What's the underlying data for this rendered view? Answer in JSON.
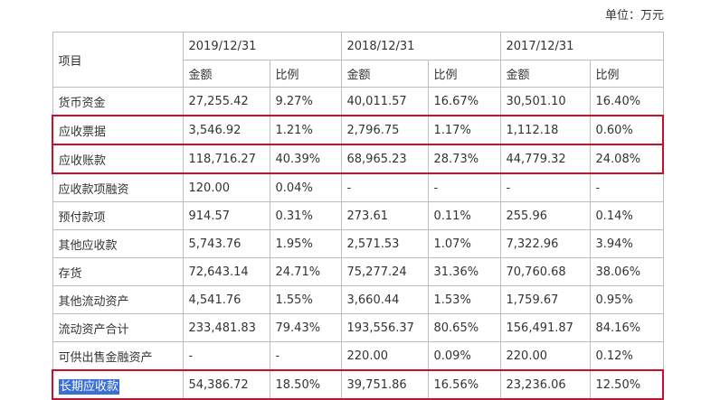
{
  "unit_label": "单位：万元",
  "header": {
    "item": "项目",
    "years": [
      "2019/12/31",
      "2018/12/31",
      "2017/12/31"
    ],
    "amount": "金额",
    "ratio": "比例"
  },
  "rows": [
    {
      "name": "货币资金",
      "v": [
        "27,255.42",
        "9.27%",
        "40,011.57",
        "16.67%",
        "30,501.10",
        "16.40%"
      ]
    },
    {
      "name": "应收票据",
      "v": [
        "3,546.92",
        "1.21%",
        "2,796.75",
        "1.17%",
        "1,112.18",
        "0.60%"
      ]
    },
    {
      "name": "应收账款",
      "v": [
        "118,716.27",
        "40.39%",
        "68,965.23",
        "28.73%",
        "44,779.32",
        "24.08%"
      ]
    },
    {
      "name": "应收款项融资",
      "v": [
        "120.00",
        "0.04%",
        "-",
        "-",
        "-",
        "-"
      ]
    },
    {
      "name": "预付款项",
      "v": [
        "914.57",
        "0.31%",
        "273.61",
        "0.11%",
        "255.96",
        "0.14%"
      ]
    },
    {
      "name": "其他应收款",
      "v": [
        "5,743.76",
        "1.95%",
        "2,571.53",
        "1.07%",
        "7,322.96",
        "3.94%"
      ]
    },
    {
      "name": "存货",
      "v": [
        "72,643.14",
        "24.71%",
        "75,277.24",
        "31.36%",
        "70,760.68",
        "38.06%"
      ]
    },
    {
      "name": "其他流动资产",
      "v": [
        "4,541.76",
        "1.55%",
        "3,660.44",
        "1.53%",
        "1,759.67",
        "0.95%"
      ]
    },
    {
      "name": "流动资产合计",
      "v": [
        "233,481.83",
        "79.43%",
        "193,556.37",
        "80.65%",
        "156,491.87",
        "84.16%"
      ]
    },
    {
      "name": "可供出售金融资产",
      "v": [
        "-",
        "-",
        "220.00",
        "0.09%",
        "220.00",
        "0.12%"
      ]
    },
    {
      "name": "长期应收款",
      "v": [
        "54,386.72",
        "18.50%",
        "39,751.86",
        "16.56%",
        "23,236.06",
        "12.50%"
      ]
    }
  ],
  "highlight_color": "#c8102e",
  "selection_color": "#3a6fd8"
}
